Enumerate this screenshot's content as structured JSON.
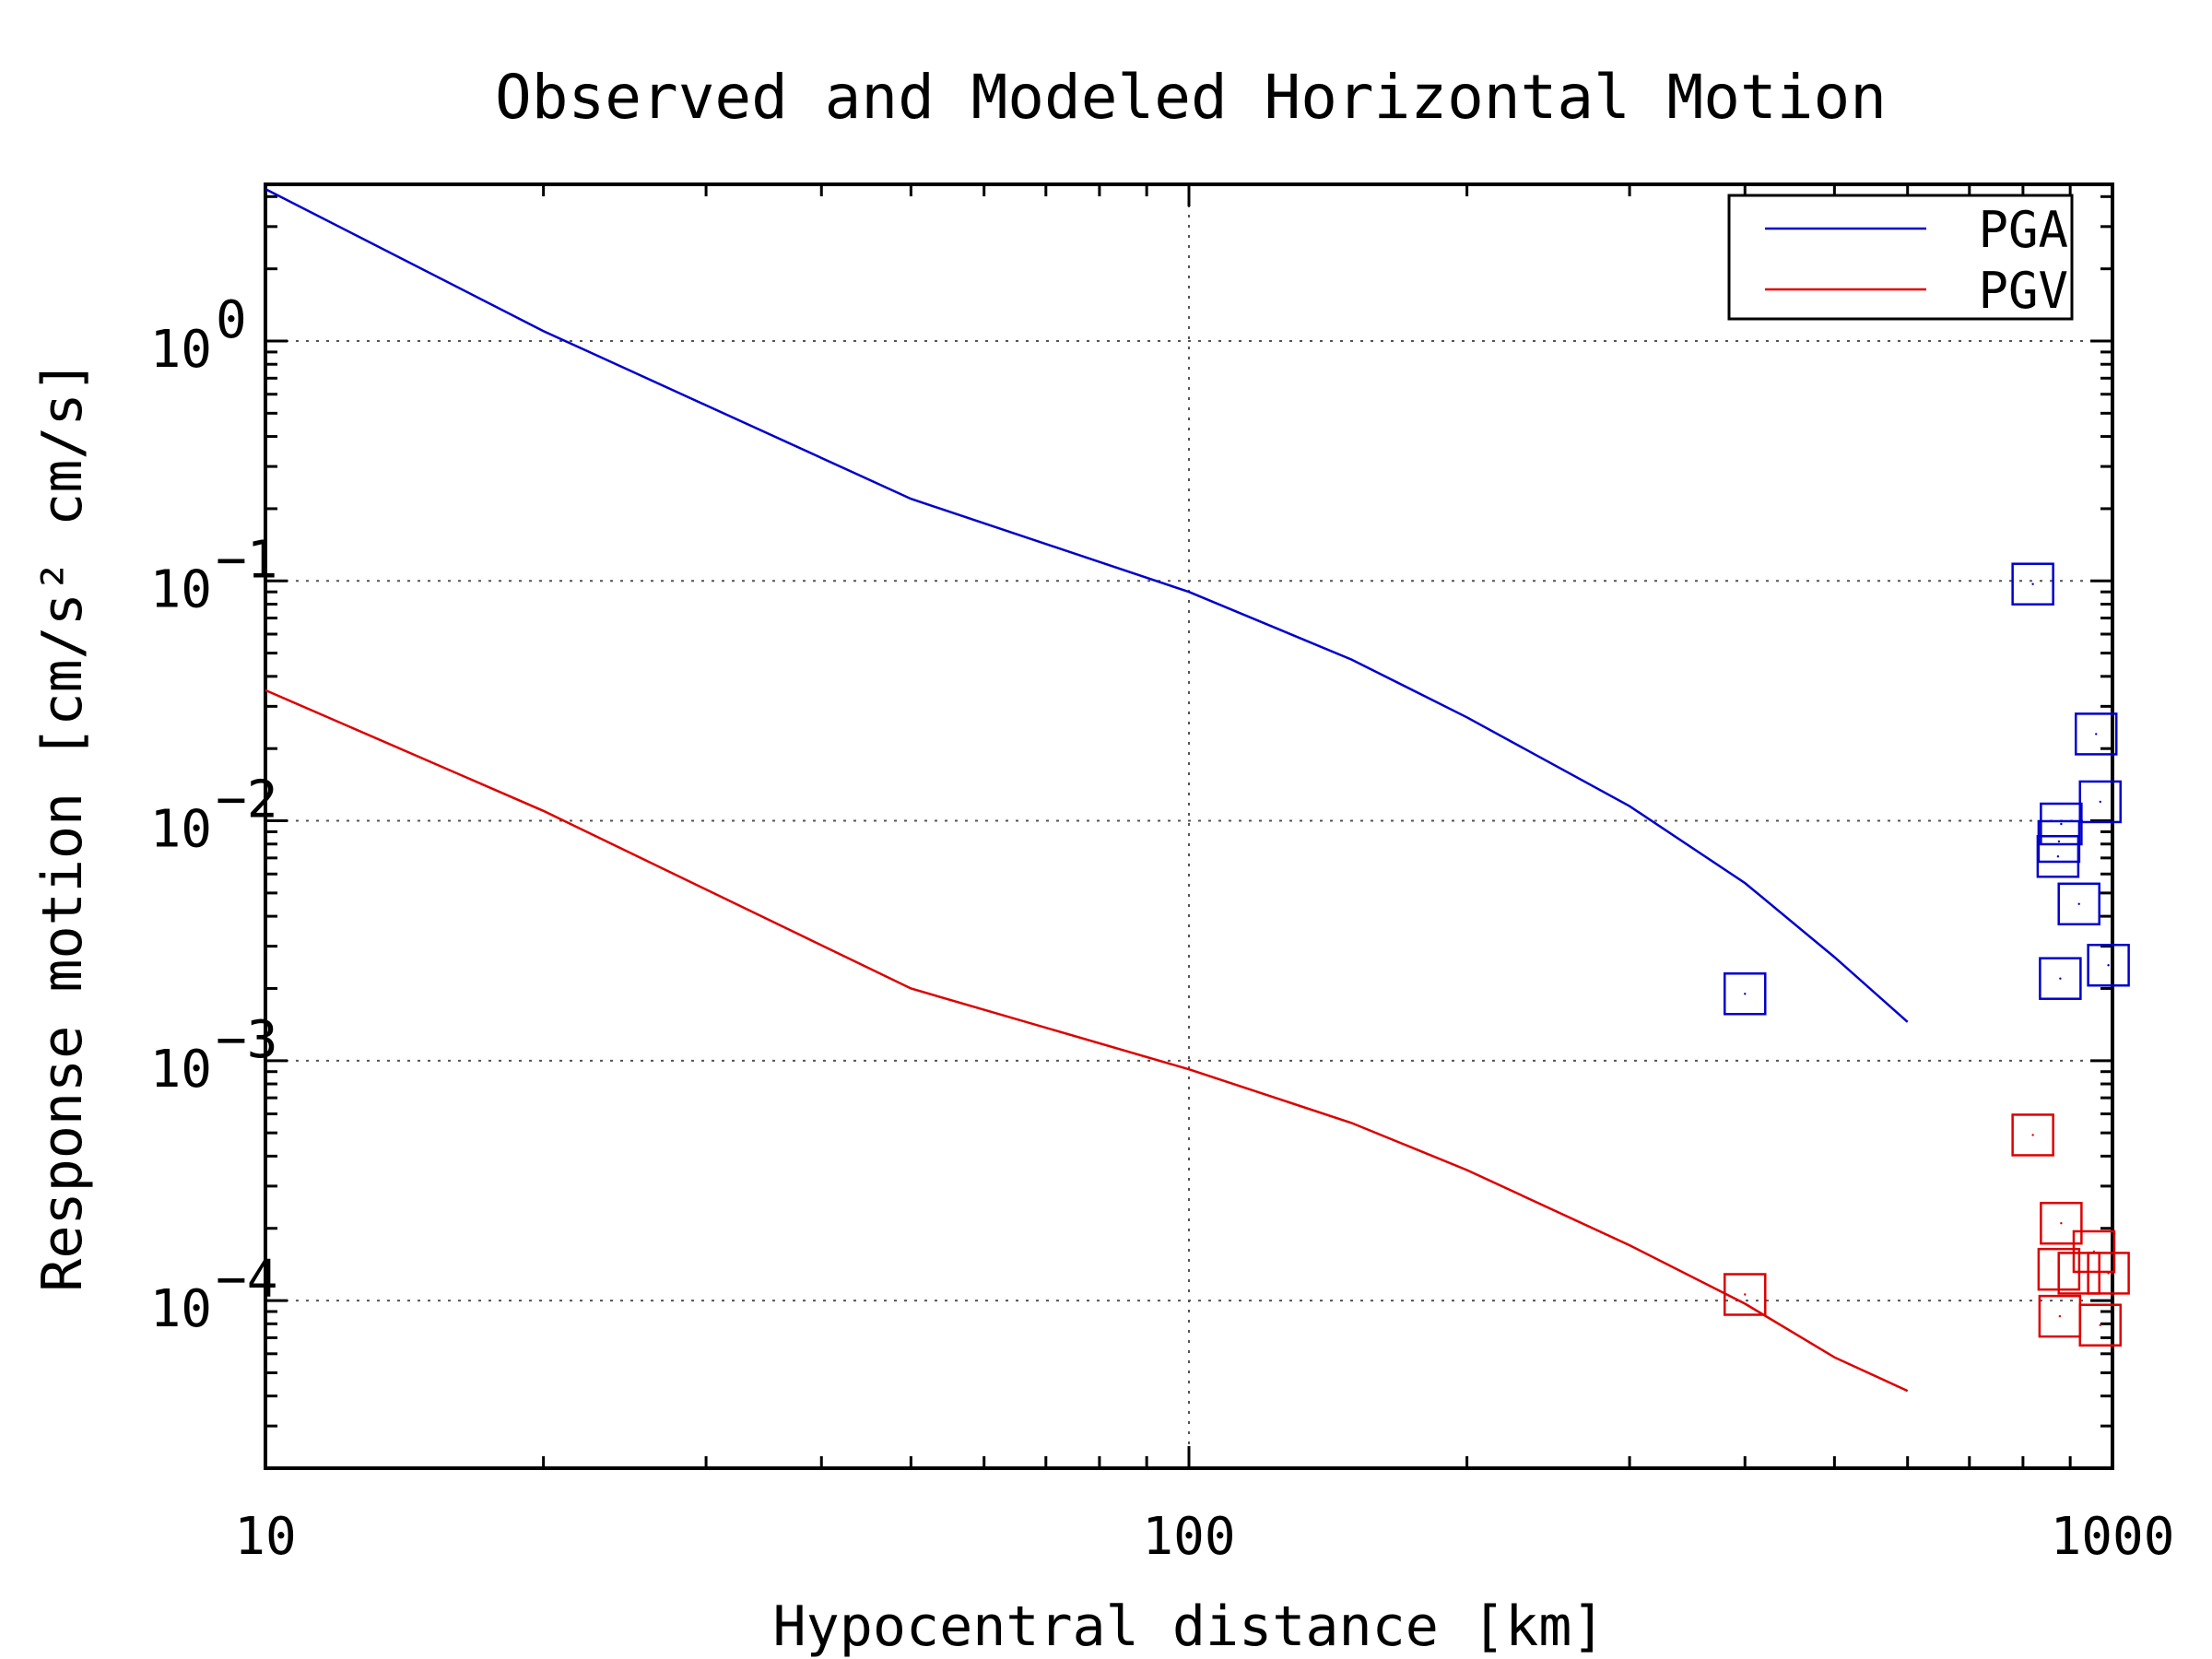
{
  "chart_data": {
    "type": "line",
    "title": "Observed and Modeled Horizontal Motion",
    "xlabel": "Hypocentral distance [km]",
    "ylabel": "Response motion [cm/s² cm/s]",
    "xscale": "log",
    "yscale": "log",
    "xlim": [
      10,
      1000
    ],
    "ylim": [
      2e-05,
      4.5
    ],
    "grid": true,
    "legend": "top-right",
    "x_ticks": [
      {
        "value": 10,
        "label": "10"
      },
      {
        "value": 100,
        "label": "100"
      },
      {
        "value": 1000,
        "label": "1000"
      }
    ],
    "y_ticks": [
      {
        "value": 1,
        "base": "10",
        "exp": "0"
      },
      {
        "value": 0.1,
        "base": "10",
        "exp": "−1"
      },
      {
        "value": 0.01,
        "base": "10",
        "exp": "−2"
      },
      {
        "value": 0.001,
        "base": "10",
        "exp": "−3"
      },
      {
        "value": 0.0001,
        "base": "10",
        "exp": "−4"
      }
    ],
    "series": [
      {
        "name": "PGA",
        "color": "#0000cc",
        "x": [
          10,
          20,
          50,
          100,
          150,
          200,
          300,
          400,
          500,
          600
        ],
        "y": [
          4.3,
          1.1,
          0.22,
          0.09,
          0.047,
          0.027,
          0.0115,
          0.0055,
          0.0027,
          0.00145
        ]
      },
      {
        "name": "PGV",
        "color": "#dd0000",
        "x": [
          10,
          20,
          50,
          100,
          150,
          200,
          300,
          400,
          500,
          600
        ],
        "y": [
          0.035,
          0.011,
          0.002,
          0.00092,
          0.00055,
          0.00035,
          0.00017,
          9.7e-05,
          5.8e-05,
          4.2e-05
        ]
      }
    ],
    "observed": [
      {
        "name": "PGA",
        "color": "#0000cc",
        "points": [
          {
            "x": 400,
            "y": 0.0019
          },
          {
            "x": 820,
            "y": 0.097
          },
          {
            "x": 960,
            "y": 0.023
          },
          {
            "x": 970,
            "y": 0.012
          },
          {
            "x": 880,
            "y": 0.0097
          },
          {
            "x": 875,
            "y": 0.0082
          },
          {
            "x": 873,
            "y": 0.0071
          },
          {
            "x": 920,
            "y": 0.0045
          },
          {
            "x": 878,
            "y": 0.0022
          },
          {
            "x": 990,
            "y": 0.0025
          }
        ]
      },
      {
        "name": "PGV",
        "color": "#dd0000",
        "points": [
          {
            "x": 400,
            "y": 0.000106
          },
          {
            "x": 820,
            "y": 0.00049
          },
          {
            "x": 880,
            "y": 0.00021
          },
          {
            "x": 955,
            "y": 0.00016
          },
          {
            "x": 875,
            "y": 0.000135
          },
          {
            "x": 920,
            "y": 0.00013
          },
          {
            "x": 990,
            "y": 0.00013
          },
          {
            "x": 877,
            "y": 8.6e-05
          },
          {
            "x": 970,
            "y": 7.9e-05
          }
        ]
      }
    ]
  }
}
